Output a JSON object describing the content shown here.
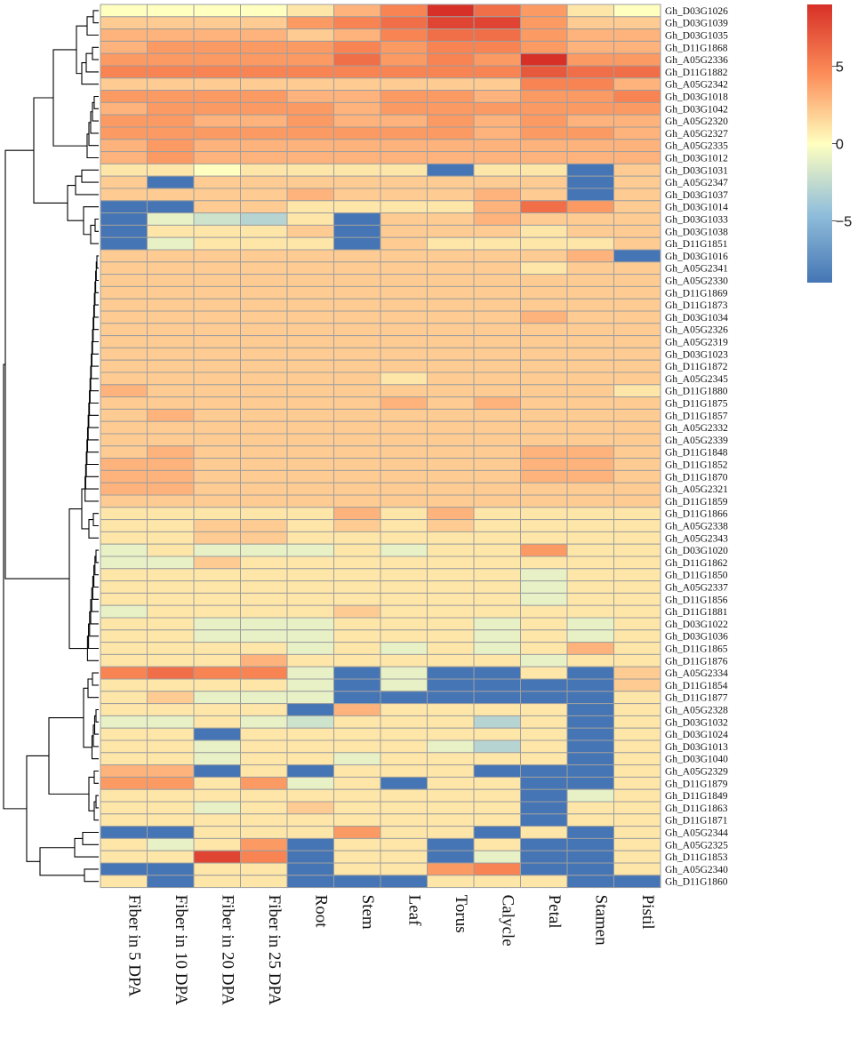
{
  "chart_data": {
    "type": "heatmap",
    "title": "",
    "xlabel": "",
    "ylabel": "",
    "columns": [
      "Fiber in 5 DPA",
      "Fiber in 10 DPA",
      "Fiber in 20 DPA",
      "Fiber in 25 DPA",
      "Root",
      "Stem",
      "Leaf",
      "Torus",
      "Calycle",
      "Petal",
      "Stamen",
      "Pistil"
    ],
    "rows": [
      "Gh_D03G1026",
      "Gh_D03G1039",
      "Gh_D03G1035",
      "Gh_D11G1868",
      "Gh_A05G2336",
      "Gh_D11G1882",
      "Gh_A05G2342",
      "Gh_D03G1018",
      "Gh_D03G1042",
      "Gh_A05G2320",
      "Gh_A05G2327",
      "Gh_A05G2335",
      "Gh_D03G1012",
      "Gh_D03G1031",
      "Gh_A05G2347",
      "Gh_D03G1037",
      "Gh_D03G1014",
      "Gh_D03G1033",
      "Gh_D03G1038",
      "Gh_D11G1851",
      "Gh_D03G1016",
      "Gh_A05G2341",
      "Gh_A05G2330",
      "Gh_D11G1869",
      "Gh_D11G1873",
      "Gh_D03G1034",
      "Gh_A05G2326",
      "Gh_A05G2319",
      "Gh_D03G1023",
      "Gh_D11G1872",
      "Gh_A05G2345",
      "Gh_D11G1880",
      "Gh_D11G1875",
      "Gh_D11G1857",
      "Gh_A05G2332",
      "Gh_A05G2339",
      "Gh_D11G1848",
      "Gh_D11G1852",
      "Gh_D11G1870",
      "Gh_A05G2321",
      "Gh_D11G1859",
      "Gh_D11G1866",
      "Gh_A05G2338",
      "Gh_A05G2343",
      "Gh_D03G1020",
      "Gh_D11G1862",
      "Gh_D11G1850",
      "Gh_A05G2337",
      "Gh_D11G1856",
      "Gh_D11G1881",
      "Gh_D03G1022",
      "Gh_D03G1036",
      "Gh_D11G1865",
      "Gh_D11G1876",
      "Gh_A05G2334",
      "Gh_D11G1854",
      "Gh_D11G1877",
      "Gh_A05G2328",
      "Gh_D03G1032",
      "Gh_D03G1024",
      "Gh_D03G1013",
      "Gh_D03G1040",
      "Gh_A05G2329",
      "Gh_D11G1879",
      "Gh_D11G1849",
      "Gh_D11G1863",
      "Gh_D11G1871",
      "Gh_A05G2344",
      "Gh_A05G2325",
      "Gh_D11G1853",
      "Gh_A05G2340",
      "Gh_D11G1860"
    ],
    "values": [
      [
        0,
        0,
        0,
        0,
        1,
        3,
        5,
        9,
        6,
        4,
        1,
        0
      ],
      [
        2,
        2,
        2,
        2,
        4,
        5,
        6,
        8,
        8,
        4,
        2,
        2
      ],
      [
        3,
        3,
        3,
        3,
        2,
        3,
        5,
        6,
        6,
        4,
        3,
        3
      ],
      [
        3,
        4,
        4,
        4,
        4,
        5,
        4,
        5,
        5,
        4,
        3,
        3
      ],
      [
        4,
        4,
        4,
        4,
        4,
        6,
        4,
        5,
        4,
        9,
        4,
        4
      ],
      [
        5,
        5,
        5,
        5,
        5,
        5,
        5,
        5,
        5,
        7,
        6,
        6
      ],
      [
        2,
        2,
        2,
        2,
        2,
        2,
        2,
        2,
        2,
        5,
        5,
        3
      ],
      [
        4,
        4,
        4,
        4,
        3,
        3,
        4,
        4,
        3,
        4,
        4,
        5
      ],
      [
        3,
        4,
        4,
        4,
        4,
        3,
        4,
        4,
        4,
        4,
        4,
        4
      ],
      [
        4,
        4,
        3,
        3,
        4,
        3,
        3,
        4,
        3,
        4,
        3,
        3
      ],
      [
        4,
        4,
        4,
        4,
        4,
        4,
        4,
        4,
        3,
        4,
        4,
        3
      ],
      [
        3,
        4,
        3,
        3,
        3,
        3,
        3,
        3,
        3,
        3,
        3,
        3
      ],
      [
        3,
        4,
        3,
        3,
        3,
        3,
        3,
        3,
        3,
        3,
        3,
        3
      ],
      [
        1,
        1,
        0,
        1,
        1,
        1,
        1,
        -9,
        1,
        1,
        -9,
        2
      ],
      [
        2,
        -9,
        2,
        2,
        2,
        2,
        2,
        2,
        2,
        2,
        -9,
        2
      ],
      [
        2,
        2,
        2,
        2,
        3,
        2,
        2,
        2,
        3,
        2,
        -9,
        2
      ],
      [
        -9,
        -9,
        2,
        2,
        1,
        1,
        1,
        1,
        3,
        6,
        4,
        2
      ],
      [
        -9,
        -1,
        -2,
        -3,
        1,
        -9,
        2,
        2,
        3,
        2,
        2,
        2
      ],
      [
        -9,
        1,
        1,
        1,
        2,
        -9,
        2,
        2,
        2,
        1,
        2,
        2
      ],
      [
        -9,
        -1,
        1,
        1,
        1,
        -9,
        2,
        1,
        1,
        1,
        1,
        2
      ],
      [
        2,
        2,
        2,
        2,
        2,
        2,
        2,
        2,
        2,
        2,
        3,
        -9
      ],
      [
        2,
        2,
        2,
        2,
        2,
        2,
        2,
        2,
        2,
        1,
        2,
        2
      ],
      [
        2,
        2,
        2,
        2,
        2,
        2,
        2,
        2,
        2,
        2,
        2,
        2
      ],
      [
        2,
        2,
        2,
        2,
        2,
        2,
        2,
        2,
        2,
        2,
        2,
        2
      ],
      [
        2,
        2,
        2,
        2,
        2,
        2,
        2,
        2,
        2,
        2,
        2,
        2
      ],
      [
        2,
        2,
        2,
        2,
        2,
        2,
        2,
        2,
        2,
        3,
        2,
        2
      ],
      [
        2,
        2,
        2,
        2,
        2,
        2,
        2,
        2,
        2,
        2,
        2,
        2
      ],
      [
        2,
        2,
        2,
        2,
        2,
        2,
        2,
        2,
        2,
        2,
        2,
        2
      ],
      [
        2,
        2,
        2,
        2,
        2,
        2,
        2,
        2,
        2,
        2,
        2,
        2
      ],
      [
        2,
        2,
        2,
        2,
        2,
        2,
        2,
        2,
        2,
        2,
        2,
        2
      ],
      [
        2,
        2,
        2,
        2,
        2,
        2,
        1,
        2,
        2,
        2,
        2,
        2
      ],
      [
        3,
        2,
        2,
        2,
        2,
        2,
        2,
        2,
        2,
        2,
        2,
        1
      ],
      [
        2,
        2,
        2,
        2,
        2,
        2,
        3,
        2,
        3,
        2,
        2,
        2
      ],
      [
        2,
        3,
        2,
        2,
        2,
        2,
        2,
        2,
        2,
        2,
        2,
        2
      ],
      [
        2,
        2,
        2,
        2,
        2,
        2,
        2,
        2,
        2,
        2,
        2,
        2
      ],
      [
        2,
        2,
        2,
        2,
        2,
        2,
        2,
        2,
        2,
        2,
        2,
        2
      ],
      [
        2,
        3,
        2,
        2,
        2,
        2,
        2,
        2,
        2,
        3,
        3,
        2
      ],
      [
        3,
        3,
        2,
        2,
        2,
        2,
        2,
        2,
        2,
        3,
        3,
        2
      ],
      [
        3,
        3,
        2,
        2,
        2,
        2,
        2,
        2,
        2,
        3,
        3,
        2
      ],
      [
        3,
        3,
        2,
        2,
        2,
        2,
        2,
        2,
        2,
        2,
        2,
        2
      ],
      [
        2,
        2,
        2,
        2,
        2,
        2,
        2,
        2,
        2,
        2,
        2,
        2
      ],
      [
        1,
        1,
        1,
        1,
        1,
        3,
        1,
        3,
        1,
        1,
        1,
        1
      ],
      [
        1,
        1,
        2,
        2,
        1,
        2,
        1,
        2,
        1,
        1,
        1,
        1
      ],
      [
        1,
        1,
        2,
        2,
        1,
        1,
        1,
        1,
        1,
        1,
        1,
        1
      ],
      [
        -1,
        1,
        -1,
        -1,
        -1,
        1,
        -1,
        1,
        1,
        4,
        1,
        1
      ],
      [
        -1,
        -1,
        2,
        1,
        1,
        1,
        1,
        1,
        1,
        1,
        1,
        1
      ],
      [
        1,
        1,
        1,
        1,
        1,
        1,
        1,
        1,
        1,
        -1,
        1,
        1
      ],
      [
        1,
        1,
        1,
        1,
        1,
        1,
        1,
        1,
        1,
        -1,
        1,
        1
      ],
      [
        1,
        1,
        1,
        1,
        1,
        1,
        1,
        1,
        1,
        -1,
        1,
        1
      ],
      [
        -1,
        1,
        1,
        1,
        1,
        2,
        1,
        1,
        1,
        1,
        1,
        1
      ],
      [
        1,
        1,
        -1,
        -1,
        -1,
        1,
        1,
        1,
        -1,
        1,
        -1,
        1
      ],
      [
        1,
        1,
        -1,
        -1,
        -1,
        1,
        1,
        1,
        -1,
        1,
        -1,
        1
      ],
      [
        1,
        1,
        1,
        1,
        -1,
        1,
        -1,
        1,
        -1,
        1,
        3,
        1
      ],
      [
        1,
        1,
        1,
        3,
        1,
        1,
        1,
        1,
        1,
        -1,
        1,
        1
      ],
      [
        5,
        6,
        5,
        5,
        -1,
        -9,
        -1,
        -9,
        -9,
        1,
        -9,
        2
      ],
      [
        1,
        1,
        1,
        1,
        -1,
        -9,
        -1,
        -9,
        -9,
        -9,
        -9,
        2
      ],
      [
        1,
        2,
        -1,
        -1,
        -1,
        -9,
        -9,
        -9,
        -9,
        -9,
        -9,
        1
      ],
      [
        1,
        1,
        1,
        1,
        -9,
        3,
        1,
        1,
        1,
        1,
        -9,
        1
      ],
      [
        -1,
        -1,
        1,
        -1,
        -2,
        1,
        1,
        1,
        -3,
        1,
        -9,
        1
      ],
      [
        1,
        1,
        -9,
        1,
        1,
        1,
        1,
        1,
        1,
        1,
        -9,
        1
      ],
      [
        1,
        1,
        -1,
        1,
        1,
        1,
        1,
        -1,
        -3,
        1,
        -9,
        1
      ],
      [
        1,
        1,
        -1,
        1,
        1,
        -1,
        1,
        1,
        1,
        1,
        -9,
        1
      ],
      [
        3,
        3,
        -9,
        1,
        -9,
        1,
        1,
        1,
        -9,
        -9,
        -9,
        1
      ],
      [
        4,
        4,
        1,
        4,
        -1,
        1,
        -9,
        1,
        1,
        -9,
        -9,
        1
      ],
      [
        1,
        1,
        1,
        1,
        1,
        1,
        1,
        1,
        1,
        -9,
        -1,
        1
      ],
      [
        1,
        1,
        -1,
        1,
        2,
        1,
        1,
        1,
        1,
        -9,
        1,
        1
      ],
      [
        1,
        1,
        1,
        1,
        1,
        1,
        1,
        1,
        1,
        -9,
        1,
        1
      ],
      [
        -9,
        -9,
        1,
        1,
        1,
        4,
        1,
        1,
        -9,
        1,
        -9,
        1
      ],
      [
        1,
        -1,
        1,
        4,
        -9,
        1,
        1,
        -9,
        1,
        -9,
        -9,
        1
      ],
      [
        1,
        1,
        8,
        5,
        -9,
        1,
        1,
        -9,
        -1,
        -9,
        -9,
        1
      ],
      [
        -9,
        -9,
        1,
        1,
        -9,
        1,
        1,
        4,
        5,
        -9,
        -9,
        1
      ],
      [
        1,
        -9,
        1,
        1,
        -9,
        -9,
        -9,
        1,
        1,
        1,
        -9,
        -9
      ]
    ],
    "color_scale": {
      "min": -9,
      "max": 9,
      "ticks": [
        5,
        0,
        -5
      ],
      "tick_labels": [
        "5",
        "0",
        "−5"
      ],
      "stops": [
        {
          "value": -9,
          "color": "#4575b4"
        },
        {
          "value": -4.5,
          "color": "#91bfdb"
        },
        {
          "value": 0,
          "color": "#ffffbf"
        },
        {
          "value": 4.5,
          "color": "#fc8d59"
        },
        {
          "value": 9,
          "color": "#d73027"
        }
      ]
    },
    "legend_position": "top-right",
    "row_dendrogram": "left",
    "cell_border_color": "#9e9e9e"
  }
}
